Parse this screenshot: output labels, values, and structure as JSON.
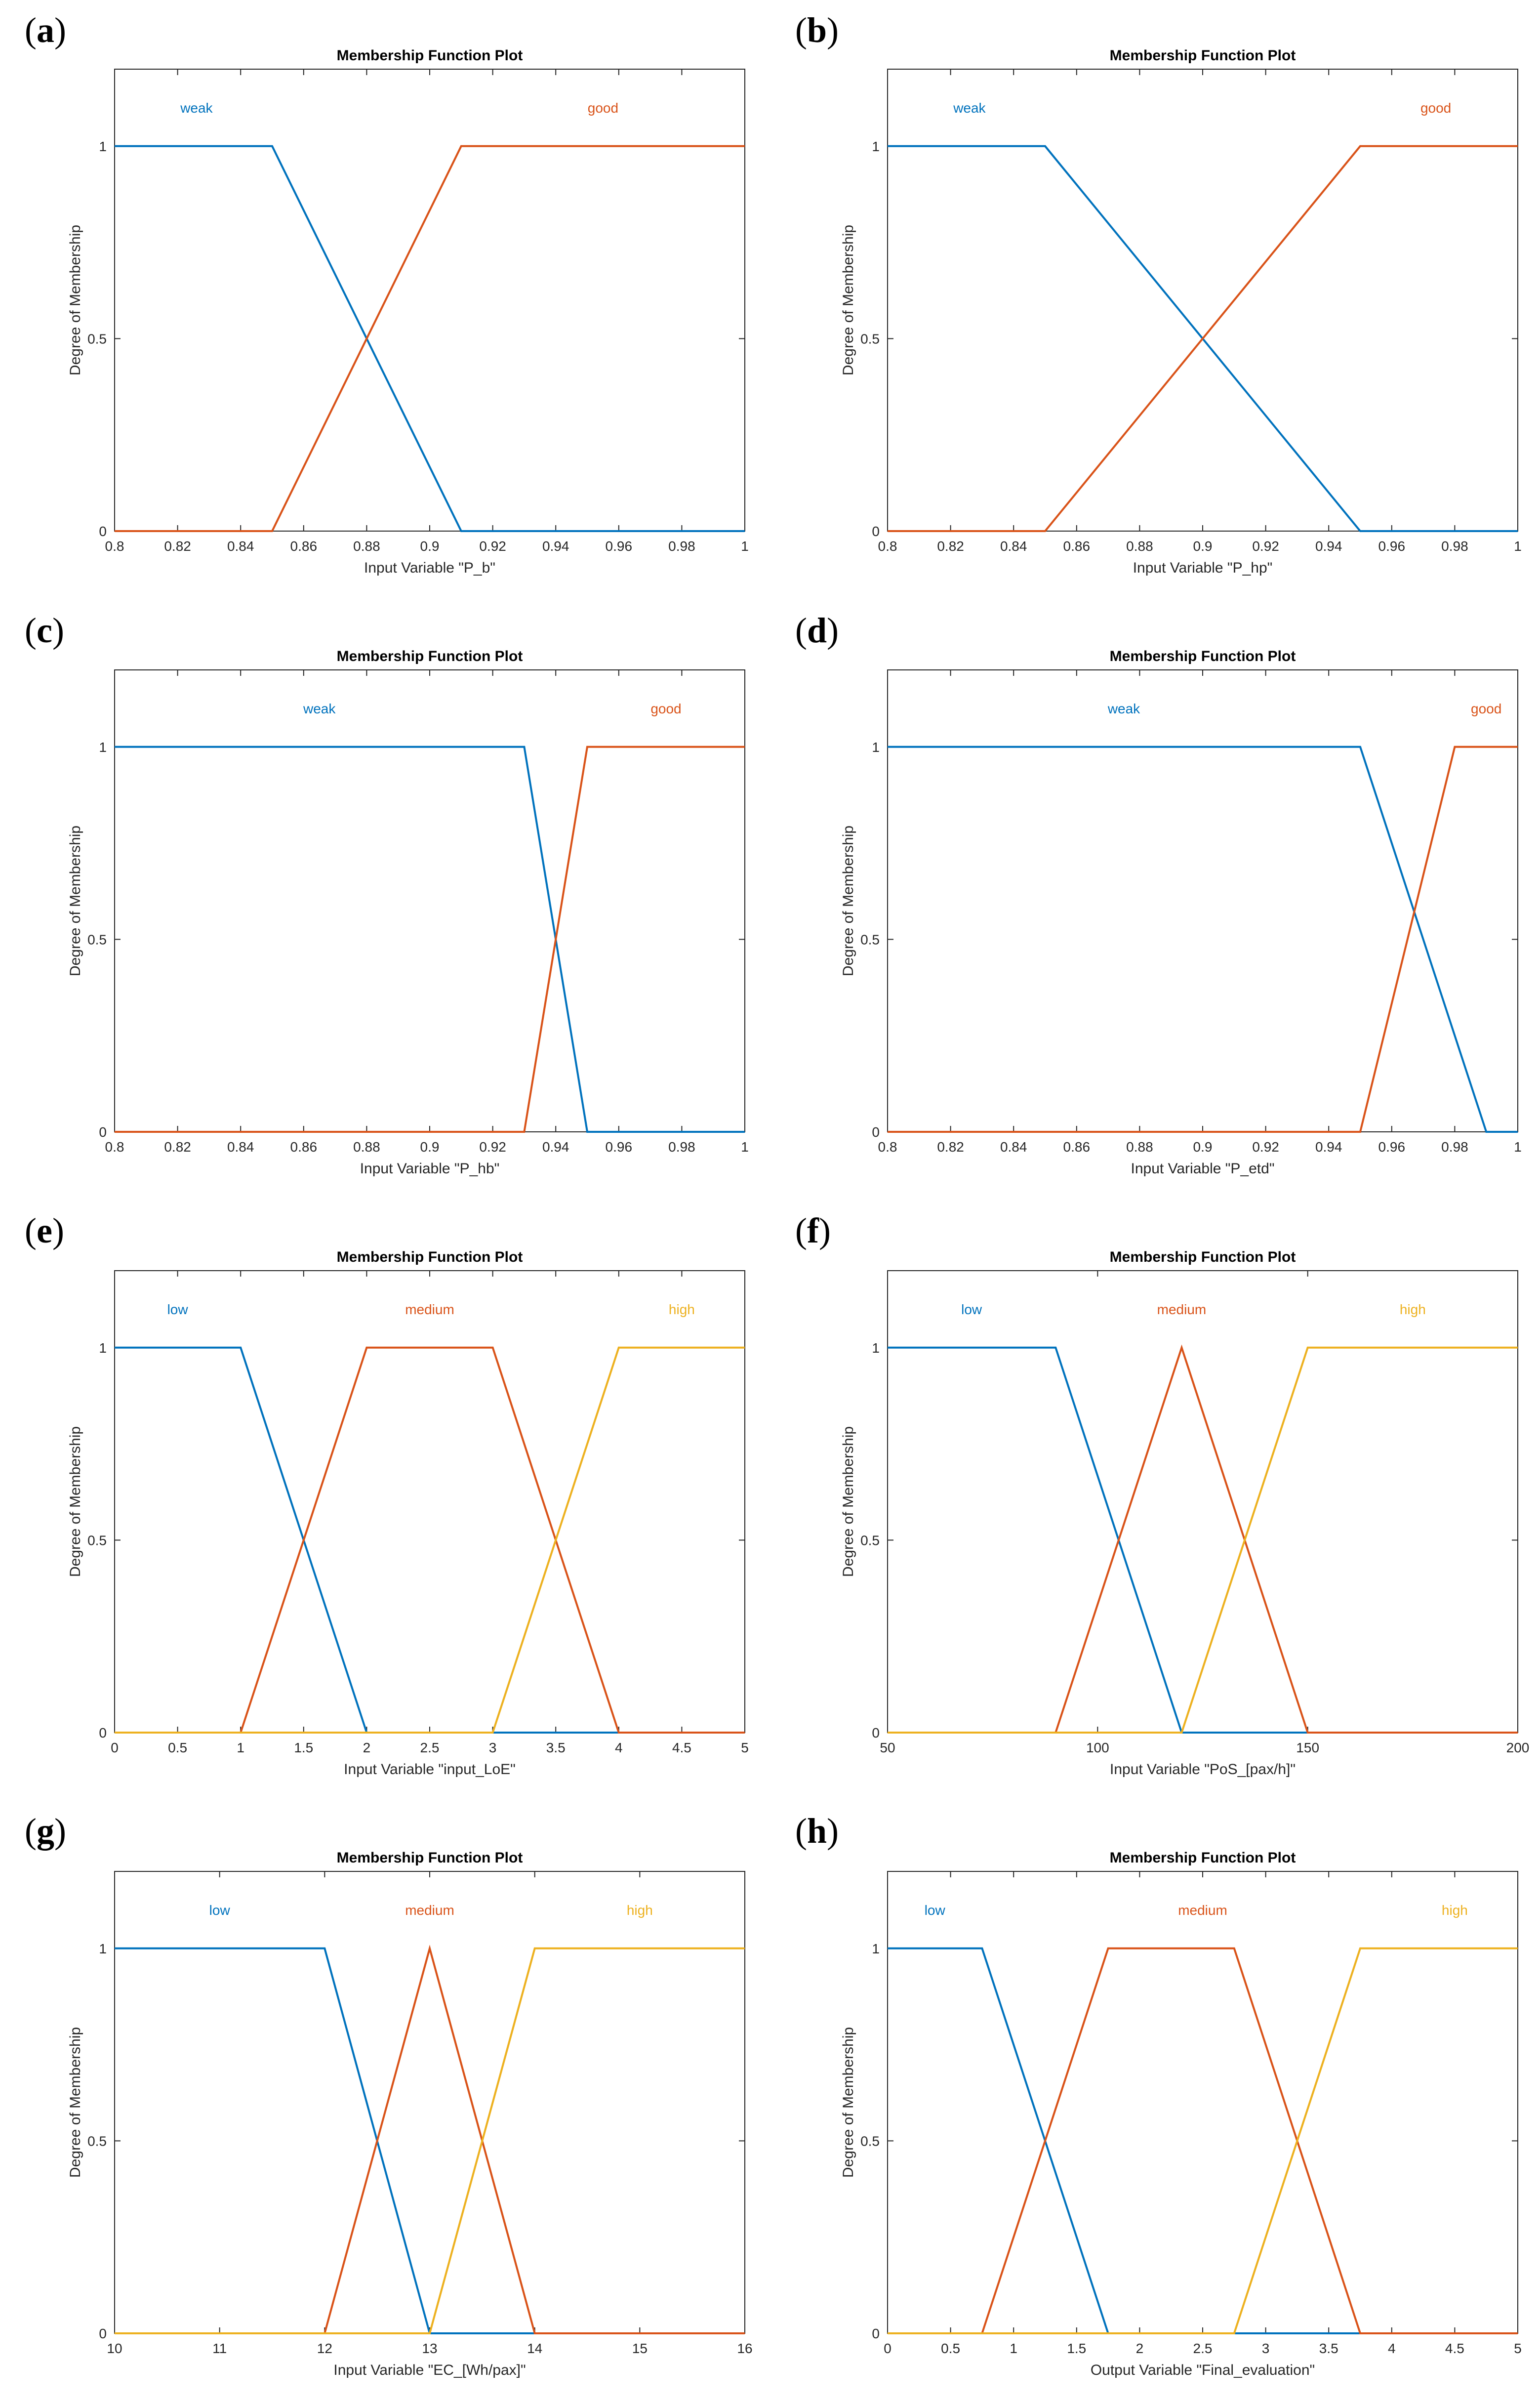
{
  "colors": {
    "mf1": "#0072BD",
    "mf2": "#D95319",
    "mf3": "#EDB120",
    "axis": "#262626",
    "grid": "#d9d9d9"
  },
  "chart_data": [
    {
      "panel": "a",
      "type": "line",
      "title": "Membership Function Plot",
      "xlabel": "Input Variable \"P_b\"",
      "ylabel": "Degree of Membership",
      "xlim": [
        0.8,
        1
      ],
      "ylim": [
        0,
        1.2
      ],
      "xticks": [
        0.8,
        0.82,
        0.84,
        0.86,
        0.88,
        0.9,
        0.92,
        0.94,
        0.96,
        0.98,
        1
      ],
      "xtick_labels": [
        "0.8",
        "0.82",
        "0.84",
        "0.86",
        "0.88",
        "0.9",
        "0.92",
        "0.94",
        "0.96",
        "0.98",
        "1"
      ],
      "yticks": [
        0,
        0.5,
        1
      ],
      "ytick_labels": [
        "0",
        "0.5",
        "1"
      ],
      "series": [
        {
          "name": "weak",
          "label_x": 0.826,
          "x": [
            0.8,
            0.85,
            0.91,
            1
          ],
          "y": [
            1,
            1,
            0,
            0
          ]
        },
        {
          "name": "good",
          "label_x": 0.955,
          "x": [
            0.8,
            0.85,
            0.91,
            1
          ],
          "y": [
            0,
            0,
            1,
            1
          ]
        }
      ]
    },
    {
      "panel": "b",
      "type": "line",
      "title": "Membership Function Plot",
      "xlabel": "Input Variable \"P_hp\"",
      "ylabel": "Degree of Membership",
      "xlim": [
        0.8,
        1
      ],
      "ylim": [
        0,
        1.2
      ],
      "xticks": [
        0.8,
        0.82,
        0.84,
        0.86,
        0.88,
        0.9,
        0.92,
        0.94,
        0.96,
        0.98,
        1
      ],
      "xtick_labels": [
        "0.8",
        "0.82",
        "0.84",
        "0.86",
        "0.88",
        "0.9",
        "0.92",
        "0.94",
        "0.96",
        "0.98",
        "1"
      ],
      "yticks": [
        0,
        0.5,
        1
      ],
      "ytick_labels": [
        "0",
        "0.5",
        "1"
      ],
      "series": [
        {
          "name": "weak",
          "label_x": 0.826,
          "x": [
            0.8,
            0.85,
            0.95,
            1
          ],
          "y": [
            1,
            1,
            0,
            0
          ]
        },
        {
          "name": "good",
          "label_x": 0.974,
          "x": [
            0.8,
            0.85,
            0.95,
            1
          ],
          "y": [
            0,
            0,
            1,
            1
          ]
        }
      ]
    },
    {
      "panel": "c",
      "type": "line",
      "title": "Membership Function Plot",
      "xlabel": "Input Variable \"P_hb\"",
      "ylabel": "Degree of Membership",
      "xlim": [
        0.8,
        1
      ],
      "ylim": [
        0,
        1.2
      ],
      "xticks": [
        0.8,
        0.82,
        0.84,
        0.86,
        0.88,
        0.9,
        0.92,
        0.94,
        0.96,
        0.98,
        1
      ],
      "xtick_labels": [
        "0.8",
        "0.82",
        "0.84",
        "0.86",
        "0.88",
        "0.9",
        "0.92",
        "0.94",
        "0.96",
        "0.98",
        "1"
      ],
      "yticks": [
        0,
        0.5,
        1
      ],
      "ytick_labels": [
        "0",
        "0.5",
        "1"
      ],
      "series": [
        {
          "name": "weak",
          "label_x": 0.865,
          "x": [
            0.8,
            0.93,
            0.95,
            1
          ],
          "y": [
            1,
            1,
            0,
            0
          ]
        },
        {
          "name": "good",
          "label_x": 0.975,
          "x": [
            0.8,
            0.93,
            0.95,
            1
          ],
          "y": [
            0,
            0,
            1,
            1
          ]
        }
      ]
    },
    {
      "panel": "d",
      "type": "line",
      "title": "Membership Function Plot",
      "xlabel": "Input Variable \"P_etd\"",
      "ylabel": "Degree of Membership",
      "xlim": [
        0.8,
        1
      ],
      "ylim": [
        0,
        1.2
      ],
      "xticks": [
        0.8,
        0.82,
        0.84,
        0.86,
        0.88,
        0.9,
        0.92,
        0.94,
        0.96,
        0.98,
        1
      ],
      "xtick_labels": [
        "0.8",
        "0.82",
        "0.84",
        "0.86",
        "0.88",
        "0.9",
        "0.92",
        "0.94",
        "0.96",
        "0.98",
        "1"
      ],
      "yticks": [
        0,
        0.5,
        1
      ],
      "ytick_labels": [
        "0",
        "0.5",
        "1"
      ],
      "series": [
        {
          "name": "weak",
          "label_x": 0.875,
          "x": [
            0.8,
            0.95,
            0.99,
            1
          ],
          "y": [
            1,
            1,
            0,
            0
          ]
        },
        {
          "name": "good",
          "label_x": 0.99,
          "x": [
            0.8,
            0.95,
            0.98,
            1
          ],
          "y": [
            0,
            0,
            1,
            1
          ]
        }
      ]
    },
    {
      "panel": "e",
      "type": "line",
      "title": "Membership Function Plot",
      "xlabel": "Input Variable \"input_LoE\"",
      "ylabel": "Degree of Membership",
      "xlim": [
        0,
        5
      ],
      "ylim": [
        0,
        1.2
      ],
      "xticks": [
        0,
        0.5,
        1,
        1.5,
        2,
        2.5,
        3,
        3.5,
        4,
        4.5,
        5
      ],
      "xtick_labels": [
        "0",
        "0.5",
        "1",
        "1.5",
        "2",
        "2.5",
        "3",
        "3.5",
        "4",
        "4.5",
        "5"
      ],
      "yticks": [
        0,
        0.5,
        1
      ],
      "ytick_labels": [
        "0",
        "0.5",
        "1"
      ],
      "series": [
        {
          "name": "low",
          "label_x": 0.5,
          "x": [
            0,
            1,
            2,
            3,
            4,
            5
          ],
          "y": [
            1,
            1,
            0,
            0,
            0,
            0
          ]
        },
        {
          "name": "medium",
          "label_x": 2.5,
          "x": [
            0,
            1,
            2,
            3,
            4,
            5
          ],
          "y": [
            0,
            0,
            1,
            1,
            0,
            0
          ]
        },
        {
          "name": "high",
          "label_x": 4.5,
          "x": [
            0,
            3,
            4,
            5
          ],
          "y": [
            0,
            0,
            1,
            1
          ]
        }
      ]
    },
    {
      "panel": "f",
      "type": "line",
      "title": "Membership Function Plot",
      "xlabel": "Input Variable \"PoS_[pax/h]\"",
      "ylabel": "Degree of Membership",
      "xlim": [
        50,
        200
      ],
      "ylim": [
        0,
        1.2
      ],
      "xticks": [
        50,
        100,
        150,
        200
      ],
      "xtick_labels": [
        "50",
        "100",
        "150",
        "200"
      ],
      "yticks": [
        0,
        0.5,
        1
      ],
      "ytick_labels": [
        "0",
        "0.5",
        "1"
      ],
      "series": [
        {
          "name": "low",
          "label_x": 70,
          "x": [
            50,
            90,
            120,
            200
          ],
          "y": [
            1,
            1,
            0,
            0
          ]
        },
        {
          "name": "medium",
          "label_x": 120,
          "x": [
            50,
            90,
            120,
            150,
            200
          ],
          "y": [
            0,
            0,
            1,
            0,
            0
          ]
        },
        {
          "name": "high",
          "label_x": 175,
          "x": [
            50,
            120,
            150,
            200
          ],
          "y": [
            0,
            0,
            1,
            1
          ]
        }
      ]
    },
    {
      "panel": "g",
      "type": "line",
      "title": "Membership Function Plot",
      "xlabel": "Input Variable \"EC_[Wh/pax]\"",
      "ylabel": "Degree of Membership",
      "xlim": [
        10,
        16
      ],
      "ylim": [
        0,
        1.2
      ],
      "xticks": [
        10,
        11,
        12,
        13,
        14,
        15,
        16
      ],
      "xtick_labels": [
        "10",
        "11",
        "12",
        "13",
        "14",
        "15",
        "16"
      ],
      "yticks": [
        0,
        0.5,
        1
      ],
      "ytick_labels": [
        "0",
        "0.5",
        "1"
      ],
      "series": [
        {
          "name": "low",
          "label_x": 11,
          "x": [
            10,
            12,
            13,
            16
          ],
          "y": [
            1,
            1,
            0,
            0
          ]
        },
        {
          "name": "medium",
          "label_x": 13,
          "x": [
            10,
            12,
            13,
            14,
            16
          ],
          "y": [
            0,
            0,
            1,
            0,
            0
          ]
        },
        {
          "name": "high",
          "label_x": 15,
          "x": [
            10,
            13,
            14,
            16
          ],
          "y": [
            0,
            0,
            1,
            1
          ]
        }
      ]
    },
    {
      "panel": "h",
      "type": "line",
      "title": "Membership Function Plot",
      "xlabel": "Output Variable \"Final_evaluation\"",
      "ylabel": "Degree of Membership",
      "xlim": [
        0,
        5
      ],
      "ylim": [
        0,
        1.2
      ],
      "xticks": [
        0,
        0.5,
        1,
        1.5,
        2,
        2.5,
        3,
        3.5,
        4,
        4.5,
        5
      ],
      "xtick_labels": [
        "0",
        "0.5",
        "1",
        "1.5",
        "2",
        "2.5",
        "3",
        "3.5",
        "4",
        "4.5",
        "5"
      ],
      "yticks": [
        0,
        0.5,
        1
      ],
      "ytick_labels": [
        "0",
        "0.5",
        "1"
      ],
      "series": [
        {
          "name": "low",
          "label_x": 0.375,
          "x": [
            0,
            0.75,
            1.75,
            3.75,
            5
          ],
          "y": [
            1,
            1,
            0,
            0,
            0
          ]
        },
        {
          "name": "medium",
          "label_x": 2.5,
          "x": [
            0,
            0.75,
            1.75,
            2.75,
            3.75,
            5
          ],
          "y": [
            0,
            0,
            1,
            1,
            0,
            0
          ]
        },
        {
          "name": "high",
          "label_x": 4.5,
          "x": [
            0,
            2.75,
            3.75,
            5
          ],
          "y": [
            0,
            0,
            1,
            1
          ]
        }
      ]
    }
  ]
}
